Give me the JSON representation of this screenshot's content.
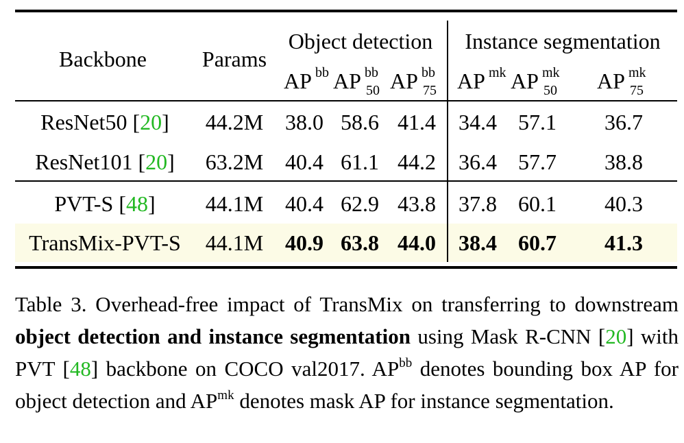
{
  "table": {
    "headers": {
      "backbone": "Backbone",
      "params": "Params",
      "object_detection": "Object detection",
      "instance_segmentation": "Instance segmentation",
      "metrics": [
        {
          "base": "AP",
          "sup": "bb",
          "sub": ""
        },
        {
          "base": "AP",
          "sup": "bb",
          "sub": "50"
        },
        {
          "base": "AP",
          "sup": "bb",
          "sub": "75"
        },
        {
          "base": "AP",
          "sup": "mk",
          "sub": ""
        },
        {
          "base": "AP",
          "sup": "mk",
          "sub": "50"
        },
        {
          "base": "AP",
          "sup": "mk",
          "sub": "75"
        }
      ]
    },
    "rows": [
      {
        "name": "ResNet50 ",
        "cite": "20",
        "params": "44.2M",
        "values": [
          "38.0",
          "58.6",
          "41.4",
          "34.4",
          "57.1",
          "36.7"
        ]
      },
      {
        "name": "ResNet101 ",
        "cite": "20",
        "params": "63.2M",
        "values": [
          "40.4",
          "61.1",
          "44.2",
          "36.4",
          "57.7",
          "38.8"
        ]
      },
      {
        "name": "PVT-S ",
        "cite": "48",
        "params": "44.1M",
        "values": [
          "40.4",
          "62.9",
          "43.8",
          "37.8",
          "60.1",
          "40.3"
        ]
      },
      {
        "name": "TransMix-PVT-S",
        "cite": "",
        "params": "44.1M",
        "values": [
          "40.9",
          "63.8",
          "44.0",
          "38.4",
          "60.7",
          "41.3"
        ],
        "highlight": true
      }
    ]
  },
  "caption": {
    "label": "Table 3.",
    "text1": " Overhead-free impact of TransMix on transferring to downstream ",
    "bold": "object detection and instance segmentation",
    "text2": " using Mask R-CNN [",
    "cite1": "20",
    "text3": "] with PVT [",
    "cite2": "48",
    "text4": "] backbone on COCO val2017. AP",
    "sup1": "bb",
    "text5": " denotes bounding box AP for object detection and AP",
    "sup2": "mk",
    "text6": " denotes mask AP for instance segmentation."
  },
  "colors": {
    "citation": "#22b822",
    "highlight_row": "#fcfbe6"
  }
}
